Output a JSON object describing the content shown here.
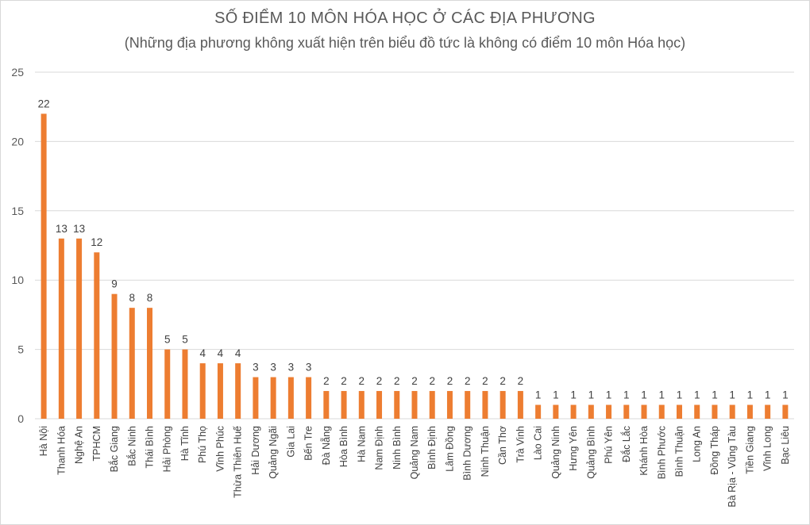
{
  "chart_data": {
    "type": "bar",
    "title": "SỐ ĐIỂM 10 MÔN HÓA HỌC Ở CÁC ĐỊA PHƯƠNG",
    "subtitle": "(Những địa phương không xuất hiện trên biểu đồ tức là không có điểm 10 môn Hóa học)",
    "xlabel": "",
    "ylabel": "",
    "ylim": [
      0,
      25
    ],
    "yticks": [
      0,
      5,
      10,
      15,
      20,
      25
    ],
    "grid": true,
    "legend": "none",
    "bar_color": "#ed7d31",
    "categories": [
      "Hà Nội",
      "Thanh Hóa",
      "Nghệ An",
      "TPHCM",
      "Bắc Giang",
      "Bắc Ninh",
      "Thái Bình",
      "Hải Phòng",
      "Hà Tĩnh",
      "Phú Thọ",
      "Vĩnh Phúc",
      "Thừa Thiên Huế",
      "Hải Dương",
      "Quảng Ngãi",
      "Gia Lai",
      "Bến Tre",
      "Đà Nẵng",
      "Hòa Bình",
      "Hà Nam",
      "Nam Định",
      "Ninh Bình",
      "Quảng Nam",
      "Bình Định",
      "Lâm Đồng",
      "Bình Dương",
      "Ninh Thuận",
      "Cần Thơ",
      "Trà Vinh",
      "Lào Cai",
      "Quảng Ninh",
      "Hưng Yên",
      "Quảng Bình",
      "Phú Yên",
      "Đắc Lắc",
      "Khánh Hòa",
      "Bình Phước",
      "Bình Thuận",
      "Long An",
      "Đồng Tháp",
      "Bà Rịa - Vũng Tàu",
      "Tiền Giang",
      "Vĩnh Long",
      "Bạc Liêu"
    ],
    "values": [
      22,
      13,
      13,
      12,
      9,
      8,
      8,
      5,
      5,
      4,
      4,
      4,
      3,
      3,
      3,
      3,
      2,
      2,
      2,
      2,
      2,
      2,
      2,
      2,
      2,
      2,
      2,
      2,
      1,
      1,
      1,
      1,
      1,
      1,
      1,
      1,
      1,
      1,
      1,
      1,
      1,
      1,
      1
    ]
  }
}
